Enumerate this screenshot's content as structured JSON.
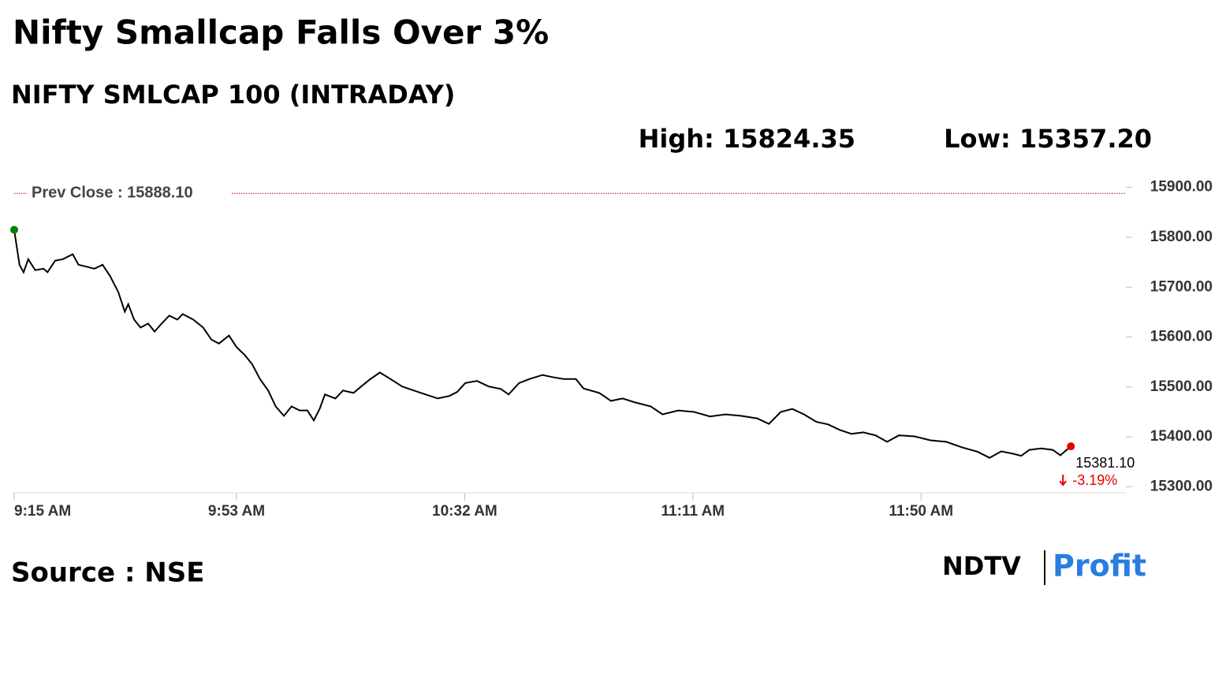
{
  "chart_data": {
    "type": "line",
    "title": "Nifty Smallcap Falls Over 3%",
    "subtitle": "NIFTY SMLCAP 100 (INTRADAY)",
    "high_label": "High: 15824.35",
    "low_label": "Low: 15357.20",
    "reference_line": {
      "value": 15888.1,
      "label": "Prev Close : 15888.10",
      "color": "#c00000"
    },
    "color": "#000000",
    "x": [
      0,
      0.9,
      1.6,
      2.4,
      3.6,
      5,
      5.7,
      7,
      8.3,
      10,
      11,
      12.4,
      13.7,
      15.1,
      16.4,
      17.8,
      18.9,
      19.5,
      20.5,
      21.6,
      22.9,
      24,
      25.2,
      26.5,
      27.9,
      28.8,
      30.6,
      32.3,
      33.7,
      35,
      36.7,
      38,
      39.4,
      40.7,
      42,
      43.4,
      44.7,
      46.1,
      47.4,
      48.8,
      50.1,
      51.2,
      52.2,
      53.1,
      54.9,
      56.2,
      58,
      59.3,
      60.9,
      62.5,
      64.3,
      66.3,
      68.3,
      70.3,
      72.4,
      74.4,
      75.7,
      77.1,
      79.1,
      81.1,
      83.2,
      84.5,
      86.3,
      88.1,
      90.3,
      91.9,
      93.9,
      96,
      97.3,
      100,
      102,
      104,
      106.1,
      108.8,
      110.8,
      113.5,
      116.2,
      118.9,
      121.6,
      124.3,
      127,
      129,
      131,
      133,
      135,
      137.1,
      139.1,
      141.1,
      143.1,
      145.1,
      147.2,
      149.2,
      151.2,
      153.9,
      156.6,
      159.3,
      162,
      164.7,
      166.7,
      168.7,
      170.8,
      172.1,
      173.5,
      175.5,
      177.5,
      178.8,
      180.6
    ],
    "values": [
      15815,
      15745,
      15730,
      15756,
      15734,
      15737,
      15730,
      15753,
      15756,
      15766,
      15745,
      15741,
      15737,
      15745,
      15722,
      15690,
      15651,
      15666,
      15635,
      15619,
      15627,
      15611,
      15627,
      15643,
      15635,
      15646,
      15635,
      15619,
      15595,
      15587,
      15603,
      15580,
      15564,
      15545,
      15516,
      15493,
      15461,
      15442,
      15461,
      15453,
      15453,
      15433,
      15456,
      15485,
      15477,
      15493,
      15488,
      15501,
      15516,
      15529,
      15516,
      15501,
      15493,
      15485,
      15477,
      15482,
      15490,
      15508,
      15512,
      15501,
      15496,
      15485,
      15508,
      15516,
      15524,
      15520,
      15516,
      15516,
      15497,
      15488,
      15472,
      15477,
      15469,
      15461,
      15445,
      15453,
      15450,
      15441,
      15445,
      15442,
      15437,
      15426,
      15450,
      15456,
      15445,
      15430,
      15425,
      15414,
      15406,
      15409,
      15403,
      15390,
      15403,
      15401,
      15393,
      15390,
      15379,
      15370,
      15358,
      15371,
      15366,
      15362,
      15374,
      15377,
      15374,
      15363,
      15381.1
    ],
    "value_labels": {
      "last": "15381.10",
      "change": "-3.19%"
    },
    "start_color": "#008000",
    "end_color": "#e00000",
    "xlim": [
      0,
      190
    ],
    "xticks": [
      {
        "value": 0,
        "label": "9:15 AM"
      },
      {
        "value": 38,
        "label": "9:53 AM"
      },
      {
        "value": 77,
        "label": "10:32 AM"
      },
      {
        "value": 116,
        "label": "11:11 AM"
      },
      {
        "value": 155,
        "label": "11:50 AM"
      }
    ],
    "ylim": [
      15288,
      15920
    ],
    "yticks": [
      {
        "value": 15300,
        "label": "15300.00"
      },
      {
        "value": 15400,
        "label": "15400.00"
      },
      {
        "value": 15500,
        "label": "15500.00"
      },
      {
        "value": 15600,
        "label": "15600.00"
      },
      {
        "value": 15700,
        "label": "15700.00"
      },
      {
        "value": 15800,
        "label": "15800.00"
      },
      {
        "value": 15900,
        "label": "15900.00"
      }
    ],
    "source": "Source : NSE",
    "brand": {
      "left": "NDTV",
      "right": "Profit"
    }
  }
}
